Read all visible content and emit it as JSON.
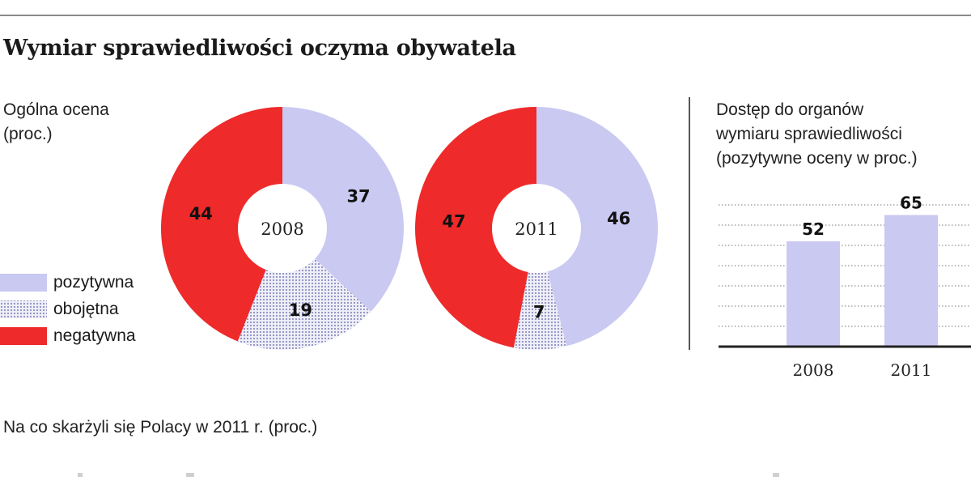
{
  "title": "Wymiar sprawiedliwości oczyma obywatela",
  "colors": {
    "positive": "#c9c9f2",
    "neutral_dots": "#7b7bb6",
    "negative": "#ee2a2a",
    "bar": "#c9c9f2"
  },
  "chart_data": [
    {
      "type": "pie",
      "title": "Ogólna ocena (proc.)",
      "title_lines": [
        "Ogólna ocena",
        "(proc.)"
      ],
      "legend": {
        "placement": "left",
        "entries": [
          "pozytywna",
          "obojętna",
          "negatywna"
        ]
      },
      "categories": [
        "pozytywna",
        "obojętna",
        "negatywna"
      ],
      "series": [
        {
          "name": "2008",
          "values": [
            37,
            19,
            44
          ]
        },
        {
          "name": "2011",
          "values": [
            46,
            7,
            47
          ]
        }
      ]
    },
    {
      "type": "bar",
      "title": "Dostęp do organów wymiaru sprawiedliwości (pozytywne oceny w proc.)",
      "title_lines": [
        "Dostęp do organów",
        "wymiaru sprawiedliwości",
        "(pozytywne oceny w proc.)"
      ],
      "categories": [
        "2008",
        "2011"
      ],
      "values": [
        52,
        65
      ],
      "ylim": [
        0,
        80
      ],
      "grid": true
    }
  ],
  "footer_title": "Na co skarżyli się Polacy w 2011 r. (proc.)"
}
